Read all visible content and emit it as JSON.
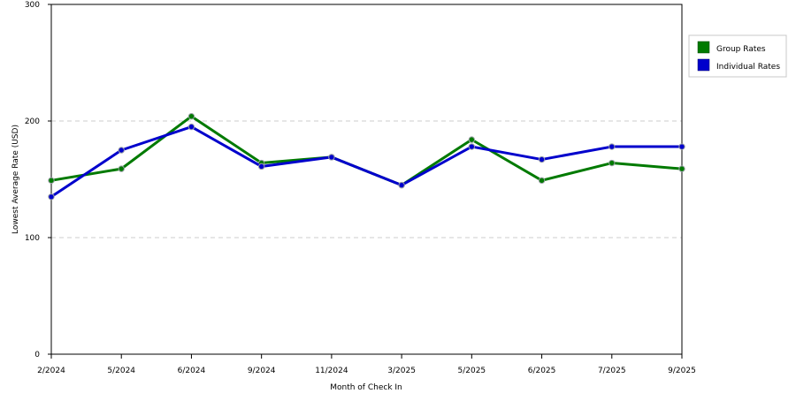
{
  "chart_data": {
    "type": "line",
    "title": "",
    "xlabel": "Month of Check In",
    "ylabel": "Lowest Average Rate (USD)",
    "ylim": [
      0,
      300
    ],
    "yticks": [
      0,
      100,
      200,
      300
    ],
    "grid": true,
    "legend_position": "top-right",
    "categories": [
      "2/2024",
      "5/2024",
      "6/2024",
      "9/2024",
      "11/2024",
      "3/2025",
      "5/2025",
      "6/2025",
      "7/2025",
      "9/2025"
    ],
    "series": [
      {
        "name": "Group Rates",
        "color": "#007a00",
        "values": [
          149,
          159,
          204,
          164,
          169,
          145,
          184,
          149,
          164,
          159
        ]
      },
      {
        "name": "Individual Rates",
        "color": "#0000cc",
        "values": [
          135,
          175,
          195,
          161,
          169,
          145,
          178,
          167,
          178,
          178
        ]
      }
    ]
  }
}
